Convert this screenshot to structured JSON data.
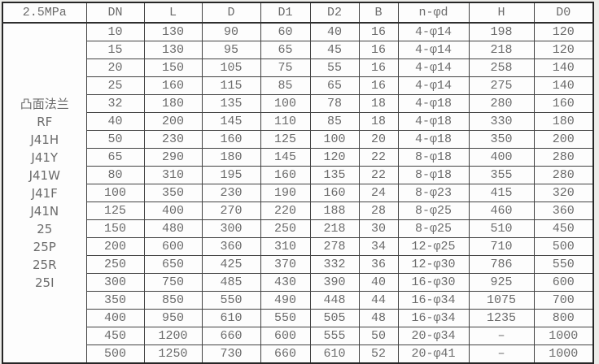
{
  "table": {
    "pressure_label": "2.5MPa",
    "columns": [
      "DN",
      "L",
      "D",
      "D1",
      "D2",
      "B",
      "n-φd",
      "H",
      "D0"
    ],
    "type_lines": [
      "凸面法兰",
      "RF",
      "J41H",
      "J41Y",
      "J41W",
      "J41F",
      "J41N",
      "25",
      "25P",
      "25R",
      "25I"
    ],
    "rows": [
      [
        "10",
        "130",
        "90",
        "60",
        "40",
        "16",
        "4-φ14",
        "198",
        "120"
      ],
      [
        "15",
        "130",
        "95",
        "65",
        "45",
        "16",
        "4-φ14",
        "218",
        "120"
      ],
      [
        "20",
        "150",
        "105",
        "75",
        "55",
        "16",
        "4-φ14",
        "258",
        "140"
      ],
      [
        "25",
        "160",
        "115",
        "85",
        "65",
        "16",
        "4-φ14",
        "275",
        "140"
      ],
      [
        "32",
        "180",
        "135",
        "100",
        "78",
        "18",
        "4-φ18",
        "280",
        "160"
      ],
      [
        "40",
        "200",
        "145",
        "110",
        "85",
        "18",
        "4-φ18",
        "330",
        "180"
      ],
      [
        "50",
        "230",
        "160",
        "125",
        "100",
        "20",
        "4-φ18",
        "350",
        "200"
      ],
      [
        "65",
        "290",
        "180",
        "145",
        "120",
        "22",
        "8-φ18",
        "400",
        "280"
      ],
      [
        "80",
        "310",
        "195",
        "160",
        "135",
        "22",
        "8-φ18",
        "355",
        "280"
      ],
      [
        "100",
        "350",
        "230",
        "190",
        "160",
        "24",
        "8-φ23",
        "415",
        "320"
      ],
      [
        "125",
        "400",
        "270",
        "220",
        "188",
        "28",
        "8-φ25",
        "460",
        "360"
      ],
      [
        "150",
        "480",
        "300",
        "250",
        "218",
        "30",
        "8-φ25",
        "510",
        "450"
      ],
      [
        "200",
        "600",
        "360",
        "310",
        "278",
        "34",
        "12-φ25",
        "710",
        "500"
      ],
      [
        "250",
        "650",
        "425",
        "370",
        "332",
        "36",
        "12-φ30",
        "786",
        "550"
      ],
      [
        "300",
        "750",
        "485",
        "430",
        "390",
        "40",
        "16-φ30",
        "925",
        "600"
      ],
      [
        "350",
        "850",
        "550",
        "490",
        "448",
        "44",
        "16-φ34",
        "1075",
        "700"
      ],
      [
        "400",
        "950",
        "610",
        "550",
        "505",
        "48",
        "16-φ34",
        "1235",
        "800"
      ],
      [
        "450",
        "1200",
        "660",
        "600",
        "555",
        "50",
        "20-φ34",
        "–",
        "1000"
      ],
      [
        "500",
        "1250",
        "730",
        "660",
        "610",
        "52",
        "20-φ41",
        "–",
        "1000"
      ]
    ]
  },
  "chart_data": {
    "type": "table",
    "title": "2.5MPa flange valve dimensions",
    "row_header_lines": [
      "凸面法兰",
      "RF",
      "J41H",
      "J41Y",
      "J41W",
      "J41F",
      "J41N",
      "25",
      "25P",
      "25R",
      "25I"
    ],
    "columns": [
      "DN",
      "L",
      "D",
      "D1",
      "D2",
      "B",
      "n-φd",
      "H",
      "D0"
    ],
    "rows": [
      [
        10,
        130,
        90,
        60,
        40,
        16,
        "4-φ14",
        198,
        120
      ],
      [
        15,
        130,
        95,
        65,
        45,
        16,
        "4-φ14",
        218,
        120
      ],
      [
        20,
        150,
        105,
        75,
        55,
        16,
        "4-φ14",
        258,
        140
      ],
      [
        25,
        160,
        115,
        85,
        65,
        16,
        "4-φ14",
        275,
        140
      ],
      [
        32,
        180,
        135,
        100,
        78,
        18,
        "4-φ18",
        280,
        160
      ],
      [
        40,
        200,
        145,
        110,
        85,
        18,
        "4-φ18",
        330,
        180
      ],
      [
        50,
        230,
        160,
        125,
        100,
        20,
        "4-φ18",
        350,
        200
      ],
      [
        65,
        290,
        180,
        145,
        120,
        22,
        "8-φ18",
        400,
        280
      ],
      [
        80,
        310,
        195,
        160,
        135,
        22,
        "8-φ18",
        355,
        280
      ],
      [
        100,
        350,
        230,
        190,
        160,
        24,
        "8-φ23",
        415,
        320
      ],
      [
        125,
        400,
        270,
        220,
        188,
        28,
        "8-φ25",
        460,
        360
      ],
      [
        150,
        480,
        300,
        250,
        218,
        30,
        "8-φ25",
        510,
        450
      ],
      [
        200,
        600,
        360,
        310,
        278,
        34,
        "12-φ25",
        710,
        500
      ],
      [
        250,
        650,
        425,
        370,
        332,
        36,
        "12-φ30",
        786,
        550
      ],
      [
        300,
        750,
        485,
        430,
        390,
        40,
        "16-φ30",
        925,
        600
      ],
      [
        350,
        850,
        550,
        490,
        448,
        44,
        "16-φ34",
        1075,
        700
      ],
      [
        400,
        950,
        610,
        550,
        505,
        48,
        "16-φ34",
        1235,
        800
      ],
      [
        450,
        1200,
        660,
        600,
        555,
        50,
        "20-φ34",
        "–",
        1000
      ],
      [
        500,
        1250,
        730,
        660,
        610,
        52,
        "20-φ41",
        "–",
        1000
      ]
    ]
  },
  "colors": {
    "page_background": "#ecece9",
    "table_background": "#fdfdfd",
    "border": "#424242",
    "text": "#6b6b6b"
  }
}
